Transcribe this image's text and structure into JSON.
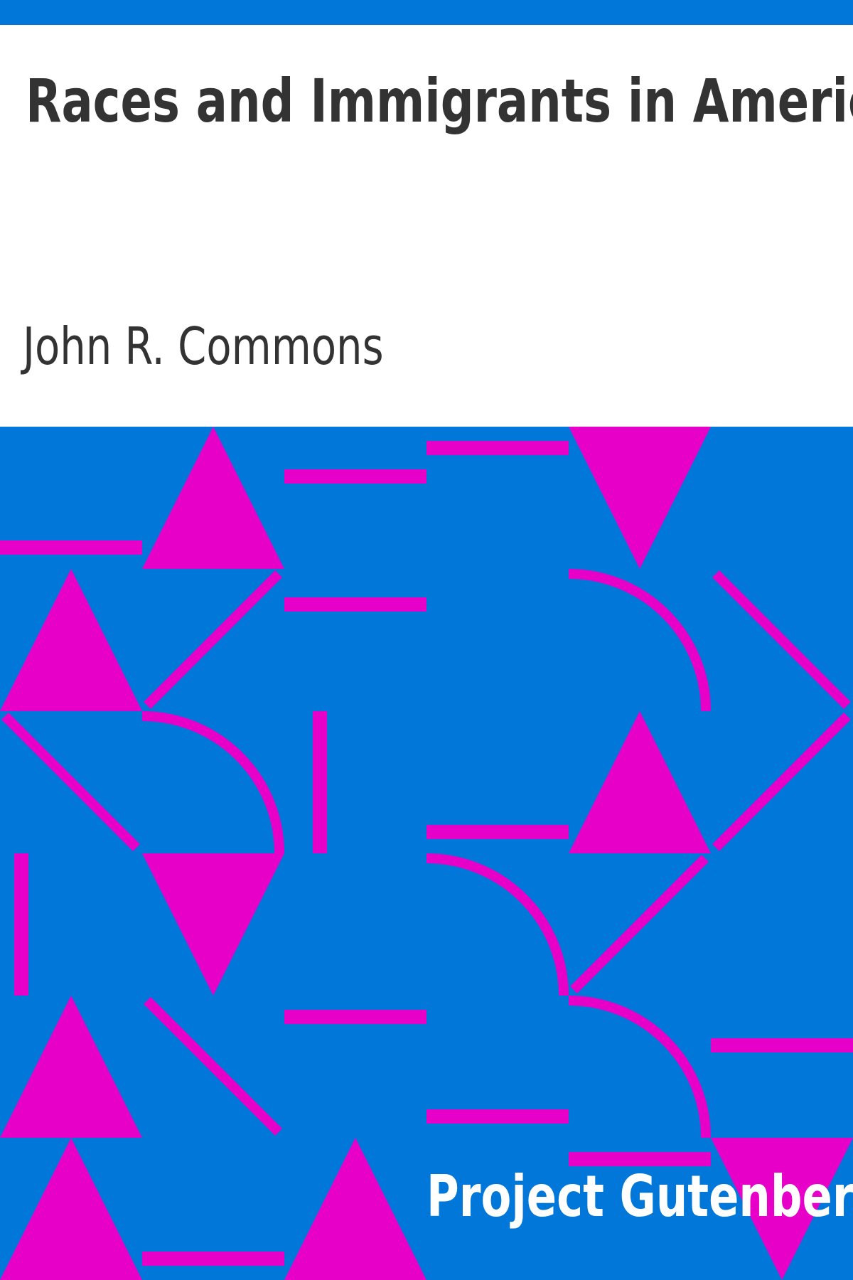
{
  "book": {
    "title": "Races and Immigrants in America",
    "author": "John R. Commons",
    "publisher": "Project Gutenberg"
  },
  "colors": {
    "background": "#ffffff",
    "band": "#0077d9",
    "pattern_background": "#0077d9",
    "pattern_shapes": "#e600c8",
    "title_text": "#333333",
    "publisher_text": "#ffffff"
  }
}
